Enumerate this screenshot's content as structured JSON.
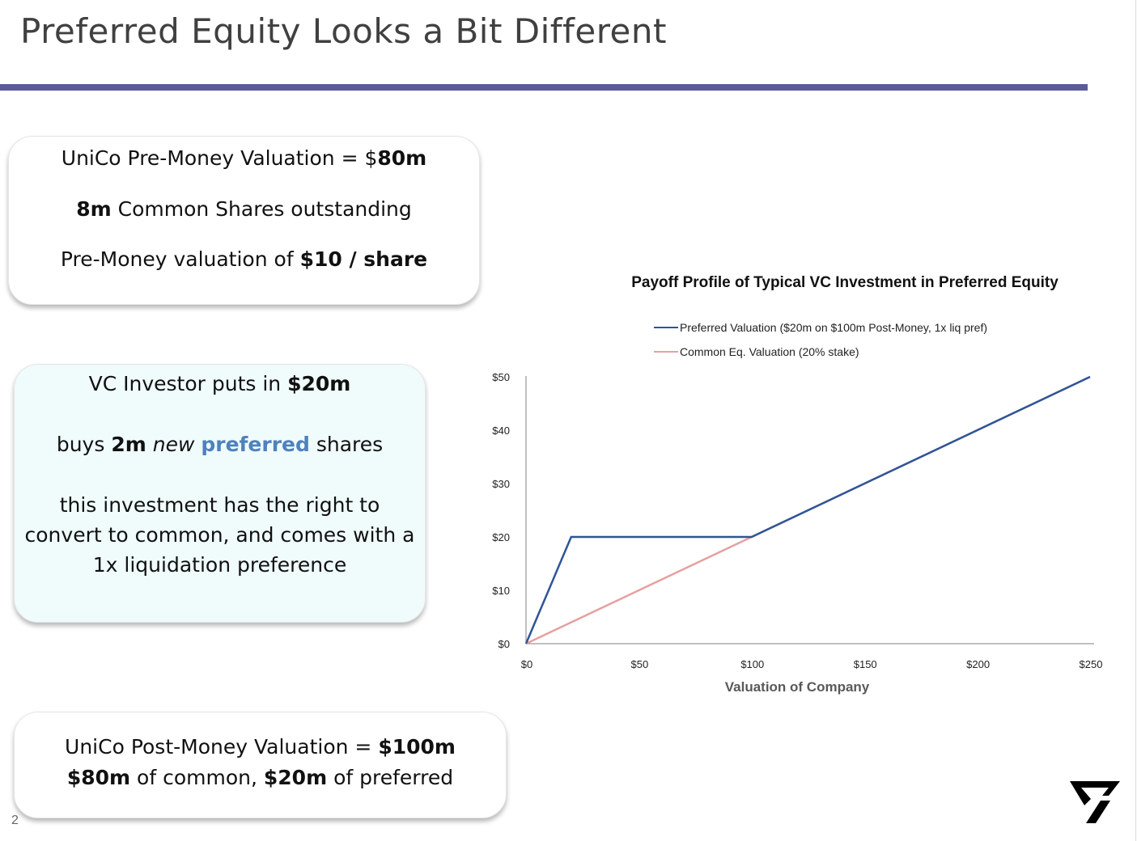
{
  "slide": {
    "title": "Preferred Equity Looks a Bit Different",
    "page_number": "2",
    "accent_color": "#5B5B9A",
    "logo": "brand-logo"
  },
  "callouts": {
    "premoney": {
      "line1_text": "UniCo Pre-Money Valuation = $",
      "line1_bold": "80m",
      "line2_bold": "8m",
      "line2_text": " Common Shares outstanding",
      "line3_text": "Pre-Money valuation of ",
      "line3_bold": "$10 / share"
    },
    "investor": {
      "line1_text": "VC Investor puts in ",
      "line1_bold": "$20m",
      "line2_pre": "buys ",
      "line2_bold": "2m",
      "line2_italic": "new",
      "line2_highlight": "preferred",
      "line2_post": " shares",
      "line3": "this investment has the right to",
      "line4": "convert to common, and comes with a",
      "line5": "1x liquidation preference",
      "background": "#F0FBFC",
      "highlight_color": "#4F81BD"
    },
    "postmoney": {
      "line1_text": "UniCo Post-Money Valuation = ",
      "line1_bold": "$100m",
      "line2_bold1": "$80m",
      "line2_text1": " of common, ",
      "line2_bold2": "$20m",
      "line2_text2": " of preferred"
    }
  },
  "chart_data": {
    "type": "line",
    "title": "Payoff Profile of Typical VC Investment in Preferred Equity",
    "xlabel": "Valuation of Company",
    "ylabel": "",
    "xlim": [
      0,
      250
    ],
    "ylim": [
      0,
      50
    ],
    "x_ticks": [
      0,
      50,
      100,
      150,
      200,
      250
    ],
    "x_tick_labels": [
      "$0",
      "$50",
      "$100",
      "$150",
      "$200",
      "$250"
    ],
    "y_ticks": [
      0,
      10,
      20,
      30,
      40,
      50
    ],
    "y_tick_labels": [
      "$0",
      "$10",
      "$20",
      "$30",
      "$40",
      "$50"
    ],
    "grid": false,
    "legend_position": "top",
    "series": [
      {
        "name": "Preferred Valuation ($20m on $100m Post-Money, 1x liq pref)",
        "color": "#2E5597",
        "x": [
          0,
          5,
          10,
          15,
          20,
          50,
          100,
          150,
          200,
          250
        ],
        "y": [
          0,
          5,
          10,
          15,
          20,
          20,
          20,
          30,
          40,
          50
        ]
      },
      {
        "name": "Common Eq. Valuation (20% stake)",
        "color": "#E6A0A0",
        "x": [
          0,
          50,
          100,
          150,
          200,
          250
        ],
        "y": [
          0,
          10,
          20,
          30,
          40,
          50
        ]
      }
    ]
  }
}
